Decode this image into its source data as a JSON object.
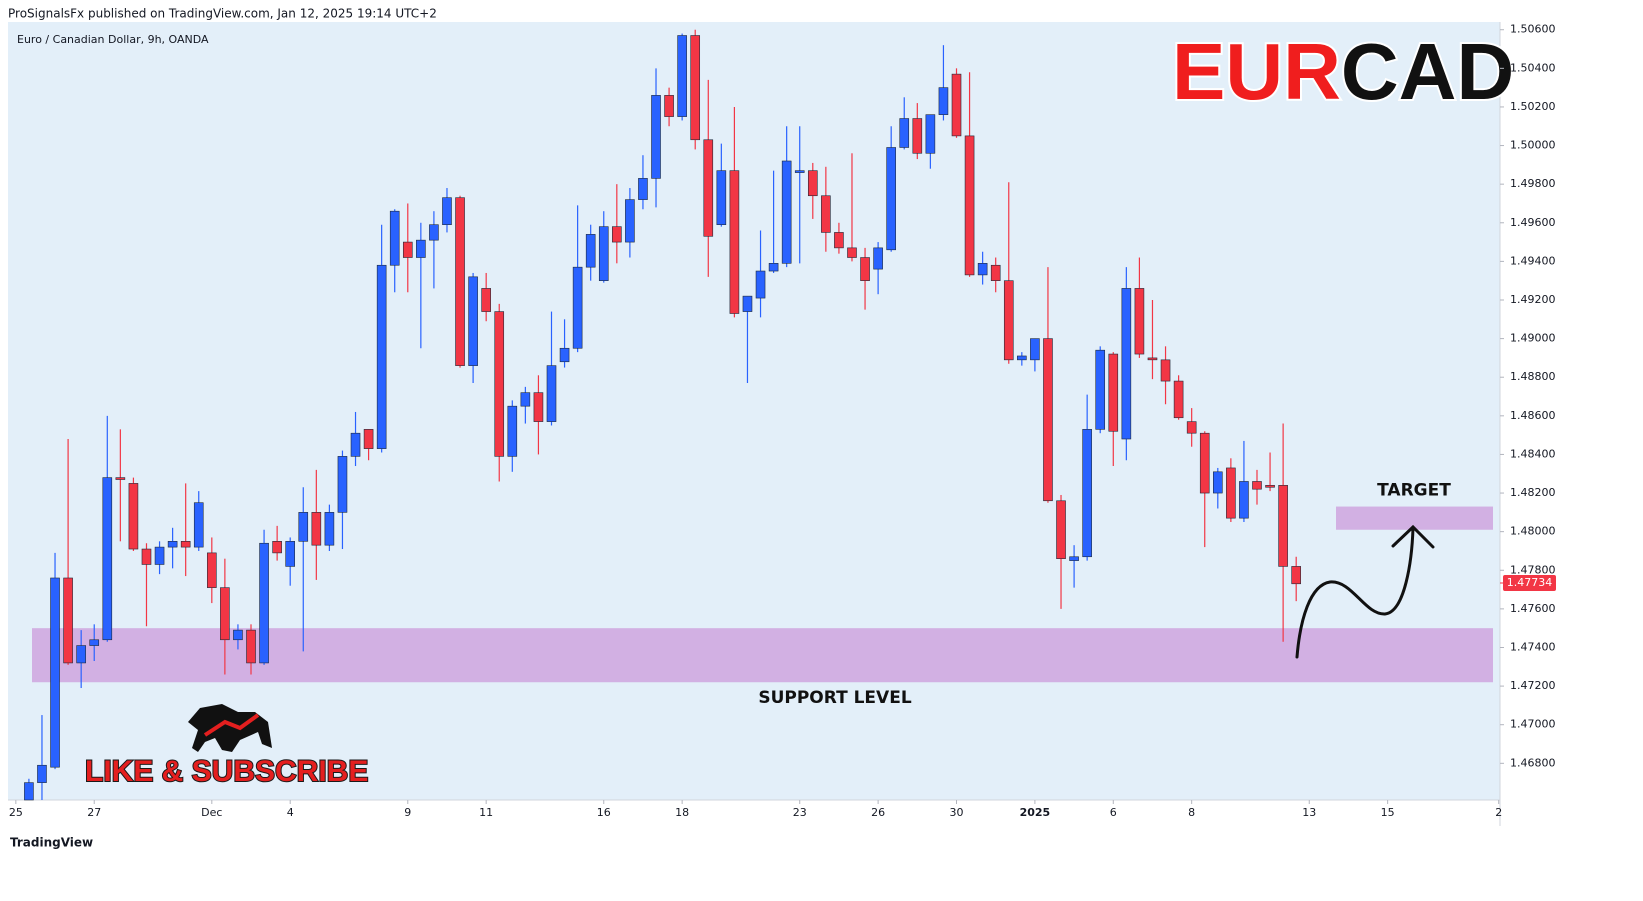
{
  "chart_data": {
    "type": "candlestick",
    "header": "ProSignalsFx published on TradingView.com, Jan 12, 2025 19:14 UTC+2",
    "subtitle": "Euro / Canadian Dollar, 9h, OANDA",
    "title_parts": [
      "EUR",
      "CAD"
    ],
    "call_to_action": "LIKE & SUBSCRIBE",
    "footer": "TradingView",
    "up_color": "#2962ff",
    "down_color": "#f23645",
    "zone_color": "#cfa8e0",
    "zones": [
      {
        "label": "SUPPORT LEVEL",
        "low": 1.4722,
        "high": 1.475
      },
      {
        "label": "TARGET",
        "low": 1.4801,
        "high": 1.4813
      }
    ],
    "last_price": 1.47734,
    "x": [
      0,
      1,
      2,
      3,
      4,
      5,
      6,
      7,
      8,
      9,
      10,
      11,
      12,
      13,
      14,
      15,
      16,
      17,
      18,
      19,
      20,
      21,
      22,
      23,
      24,
      25,
      26,
      27,
      28,
      29,
      30,
      31,
      32,
      33,
      34,
      35,
      36,
      37,
      38,
      39,
      40,
      41,
      42,
      43,
      44,
      45,
      46,
      47,
      48,
      49,
      50,
      51,
      52,
      53,
      54,
      55,
      56,
      57,
      58,
      59,
      60,
      61,
      62,
      63,
      64,
      65,
      66,
      67,
      68,
      69,
      70,
      71,
      72,
      73,
      74,
      75,
      76,
      77,
      78,
      79,
      80,
      81,
      82,
      83,
      84,
      85,
      86,
      87,
      88,
      89,
      90,
      91,
      92,
      93,
      94,
      95,
      96,
      97
    ],
    "open": [
      1.4661,
      1.467,
      1.4678,
      1.4776,
      1.4732,
      1.4741,
      1.4744,
      1.4828,
      1.4825,
      1.4791,
      1.4783,
      1.4792,
      1.4795,
      1.4792,
      1.4789,
      1.4771,
      1.4744,
      1.4749,
      1.4732,
      1.4795,
      1.4782,
      1.4795,
      1.481,
      1.4793,
      1.481,
      1.4839,
      1.4853,
      1.4843,
      1.4938,
      1.495,
      1.4942,
      1.4951,
      1.4959,
      1.4973,
      1.4886,
      1.4926,
      1.4914,
      1.4839,
      1.4865,
      1.4872,
      1.4857,
      1.4888,
      1.4895,
      1.4937,
      1.493,
      1.4958,
      1.495,
      1.4972,
      1.4983,
      1.5026,
      1.5015,
      1.5057,
      1.5003,
      1.4959,
      1.4987,
      1.4914,
      1.4921,
      1.4935,
      1.4939,
      1.4986,
      1.4987,
      1.4974,
      1.4955,
      1.4947,
      1.4942,
      1.4936,
      1.4946,
      1.4999,
      1.5014,
      1.4996,
      1.5016,
      1.5037,
      1.5005,
      1.4933,
      1.4938,
      1.493,
      1.4889,
      1.4889,
      1.49,
      1.4816,
      1.4785,
      1.4787,
      1.4853,
      1.4892,
      1.4848,
      1.4926,
      1.489,
      1.4889,
      1.4878,
      1.4857,
      1.4851,
      1.482,
      1.4833,
      1.4807,
      1.4826,
      1.4824,
      1.4824,
      1.4782
    ],
    "high": [
      1.4672,
      1.4705,
      1.4789,
      1.4848,
      1.4749,
      1.4752,
      1.486,
      1.4853,
      1.4828,
      1.4794,
      1.4795,
      1.4802,
      1.4825,
      1.4821,
      1.4797,
      1.4786,
      1.4752,
      1.4752,
      1.4801,
      1.4803,
      1.4797,
      1.4823,
      1.4832,
      1.4814,
      1.4842,
      1.4862,
      1.4853,
      1.4959,
      1.4967,
      1.497,
      1.496,
      1.4966,
      1.4978,
      1.4974,
      1.4934,
      1.4934,
      1.4918,
      1.4868,
      1.4875,
      1.4881,
      1.4914,
      1.491,
      1.4969,
      1.4959,
      1.4966,
      1.498,
      1.4978,
      1.4995,
      1.504,
      1.503,
      1.5058,
      1.506,
      1.5034,
      1.5001,
      1.502,
      1.4922,
      1.4956,
      1.4987,
      1.501,
      1.501,
      1.4991,
      1.4989,
      1.496,
      1.4996,
      1.4947,
      1.495,
      1.501,
      1.5025,
      1.5022,
      1.5016,
      1.5052,
      1.504,
      1.5038,
      1.4945,
      1.4942,
      1.4981,
      1.4893,
      1.49,
      1.4937,
      1.4819,
      1.4793,
      1.4871,
      1.4896,
      1.4893,
      1.4937,
      1.4942,
      1.492,
      1.4896,
      1.4881,
      1.4864,
      1.4852,
      1.4833,
      1.4838,
      1.4847,
      1.4832,
      1.4841,
      1.4856,
      1.4787
    ],
    "low": [
      1.4661,
      1.4661,
      1.4677,
      1.4731,
      1.4719,
      1.4733,
      1.4743,
      1.4795,
      1.479,
      1.4751,
      1.4778,
      1.4781,
      1.4777,
      1.479,
      1.4763,
      1.4726,
      1.4739,
      1.4726,
      1.4731,
      1.4785,
      1.4772,
      1.4738,
      1.4775,
      1.479,
      1.4791,
      1.4834,
      1.4837,
      1.4841,
      1.4924,
      1.4924,
      1.4895,
      1.4926,
      1.4955,
      1.4885,
      1.4877,
      1.4909,
      1.4826,
      1.4831,
      1.4856,
      1.484,
      1.4855,
      1.4885,
      1.4893,
      1.493,
      1.4929,
      1.4939,
      1.4942,
      1.4967,
      1.4968,
      1.501,
      1.5013,
      1.4998,
      1.4932,
      1.4958,
      1.4911,
      1.4877,
      1.4911,
      1.4934,
      1.4937,
      1.4939,
      1.4962,
      1.4945,
      1.4944,
      1.494,
      1.4915,
      1.4923,
      1.4945,
      1.4998,
      1.4993,
      1.4988,
      1.5013,
      1.5004,
      1.4932,
      1.4928,
      1.4924,
      1.4887,
      1.4886,
      1.4883,
      1.4815,
      1.476,
      1.4771,
      1.4785,
      1.4851,
      1.4834,
      1.4837,
      1.489,
      1.4879,
      1.4866,
      1.4858,
      1.4844,
      1.4792,
      1.4812,
      1.4805,
      1.4805,
      1.4814,
      1.4821,
      1.4743,
      1.4764
    ],
    "close": [
      1.467,
      1.4679,
      1.4776,
      1.4732,
      1.4741,
      1.4744,
      1.4828,
      1.4827,
      1.4791,
      1.4783,
      1.4792,
      1.4795,
      1.4792,
      1.4815,
      1.4771,
      1.4744,
      1.4749,
      1.4732,
      1.4794,
      1.4789,
      1.4795,
      1.481,
      1.4793,
      1.481,
      1.4839,
      1.4851,
      1.4843,
      1.4938,
      1.4966,
      1.4942,
      1.4951,
      1.4959,
      1.4973,
      1.4886,
      1.4932,
      1.4914,
      1.4839,
      1.4865,
      1.4872,
      1.4857,
      1.4886,
      1.4895,
      1.4937,
      1.4954,
      1.4958,
      1.495,
      1.4972,
      1.4983,
      1.5026,
      1.5015,
      1.5057,
      1.5003,
      1.4953,
      1.4987,
      1.4913,
      1.4922,
      1.4935,
      1.4939,
      1.4992,
      1.4987,
      1.4974,
      1.4955,
      1.4947,
      1.4942,
      1.493,
      1.4947,
      1.4999,
      1.5014,
      1.4996,
      1.5016,
      1.503,
      1.5005,
      1.4933,
      1.4939,
      1.493,
      1.4889,
      1.4891,
      1.49,
      1.4816,
      1.4786,
      1.4787,
      1.4853,
      1.4894,
      1.4852,
      1.4926,
      1.4892,
      1.4889,
      1.4878,
      1.4859,
      1.4851,
      1.482,
      1.4831,
      1.4807,
      1.4826,
      1.4822,
      1.4823,
      1.4782,
      1.4773
    ],
    "xlim": [
      -1.6,
      112.6
    ],
    "xticks": [
      {
        "value": -1,
        "label": "25"
      },
      {
        "value": 5,
        "label": "27"
      },
      {
        "value": 14,
        "label": "Dec"
      },
      {
        "value": 20,
        "label": "4"
      },
      {
        "value": 29,
        "label": "9"
      },
      {
        "value": 35,
        "label": "11"
      },
      {
        "value": 44,
        "label": "16"
      },
      {
        "value": 50,
        "label": "18"
      },
      {
        "value": 59,
        "label": "23"
      },
      {
        "value": 65,
        "label": "26"
      },
      {
        "value": 71,
        "label": "30"
      },
      {
        "value": 77,
        "label": "2025"
      },
      {
        "value": 83,
        "label": "6"
      },
      {
        "value": 89,
        "label": "8"
      },
      {
        "value": 98,
        "label": "13"
      },
      {
        "value": 104,
        "label": "15"
      },
      {
        "value": 112.5,
        "label": "2"
      }
    ],
    "ylim": [
      1.4661,
      1.5064
    ],
    "yticks": [
      {
        "value": 1.468,
        "label": "1.46800"
      },
      {
        "value": 1.47,
        "label": "1.47000"
      },
      {
        "value": 1.472,
        "label": "1.47200"
      },
      {
        "value": 1.474,
        "label": "1.47400"
      },
      {
        "value": 1.476,
        "label": "1.47600"
      },
      {
        "value": 1.478,
        "label": "1.47800"
      },
      {
        "value": 1.48,
        "label": "1.48000"
      },
      {
        "value": 1.482,
        "label": "1.48200"
      },
      {
        "value": 1.484,
        "label": "1.48400"
      },
      {
        "value": 1.486,
        "label": "1.48600"
      },
      {
        "value": 1.488,
        "label": "1.48800"
      },
      {
        "value": 1.49,
        "label": "1.49000"
      },
      {
        "value": 1.492,
        "label": "1.49200"
      },
      {
        "value": 1.494,
        "label": "1.49400"
      },
      {
        "value": 1.496,
        "label": "1.49600"
      },
      {
        "value": 1.498,
        "label": "1.49800"
      },
      {
        "value": 1.5,
        "label": "1.50000"
      },
      {
        "value": 1.502,
        "label": "1.50200"
      },
      {
        "value": 1.504,
        "label": "1.50400"
      },
      {
        "value": 1.506,
        "label": "1.50600"
      }
    ],
    "grid": false
  }
}
